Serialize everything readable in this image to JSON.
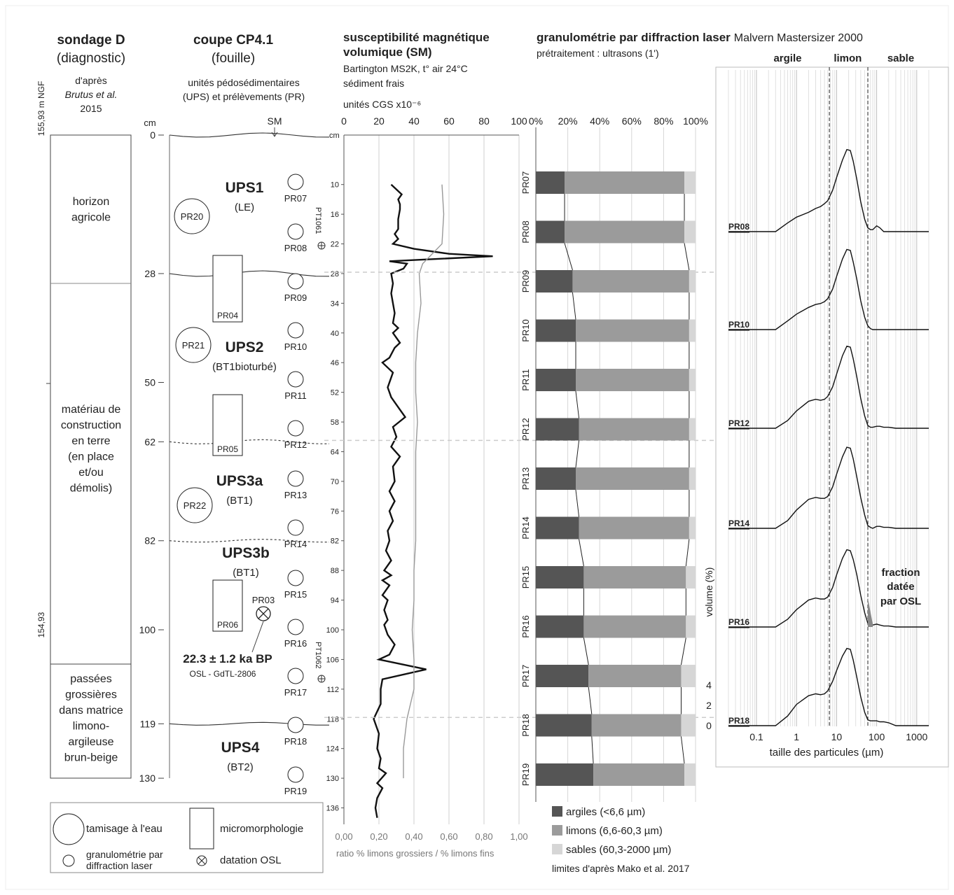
{
  "col_d": {
    "title": "sondage D",
    "subtitle": "(diagnostic)",
    "ref": [
      "d'après",
      "Brutus et al.",
      "2015"
    ],
    "alt_top": "155,93 m NGF",
    "alt_bottom": "154,93",
    "horizons": [
      {
        "lines": [
          "horizon",
          "agricole"
        ]
      },
      {
        "lines": [
          "matériau de",
          "construction",
          "en terre",
          "(en place",
          "et/ou",
          "démolis)"
        ]
      },
      {
        "lines": [
          "passées",
          "grossières",
          "dans matrice",
          "limono-",
          "argileuse",
          "brun-beige"
        ]
      }
    ]
  },
  "col_cp": {
    "title": "coupe CP4.1",
    "subtitle": "(fouille)",
    "note": [
      "unités pédosédimentaires",
      "(UPS) et prélèvements (PR)"
    ],
    "depth_unit": "cm",
    "depth_ticks": [
      "0",
      "28",
      "50",
      "62",
      "82",
      "100",
      "119",
      "130"
    ],
    "sm_label": "SM",
    "units": [
      {
        "name": "UPS1",
        "sub": "(LE)"
      },
      {
        "name": "UPS2",
        "sub": "(BT1bioturbé)"
      },
      {
        "name": "UPS3a",
        "sub": "(BT1)"
      },
      {
        "name": "UPS3b",
        "sub": "(BT1)"
      },
      {
        "name": "UPS4",
        "sub": "(BT2)"
      }
    ],
    "big_samples": [
      "PR20",
      "PR21",
      "PR22"
    ],
    "micro_samples": [
      "PR04",
      "PR05",
      "PR06"
    ],
    "samples": [
      "PR07",
      "PR08",
      "PR09",
      "PR10",
      "PR11",
      "PR12",
      "PR13",
      "PR14",
      "PR15",
      "PR16",
      "PR17",
      "PR18",
      "PR19"
    ],
    "osl_sample": "PR03",
    "osl_age": "22.3 ± 1.2 ka BP",
    "osl_code": "OSL - GdTL-2806",
    "pt_labels": [
      "PT1061",
      "PT1062"
    ]
  },
  "legend_left": {
    "wet_sieve": "tamisage à l'eau",
    "micro": "micromorphologie",
    "laser": [
      "granulométrie par",
      "diffraction laser"
    ],
    "osl": "datation OSL"
  },
  "chart_data": [
    {
      "type": "line",
      "title": [
        "susceptibilité magnétique",
        "volumique (SM)"
      ],
      "subtitle": [
        "Bartington MS2K, t° air 24°C",
        "sédiment frais"
      ],
      "xlabel_top": "unités CGS x10⁻⁶",
      "xlabel_bottom": "ratio % limons grossiers / % limons fins",
      "depth_unit": "cm",
      "top_ticks": [
        "0",
        "20",
        "40",
        "60",
        "80",
        "100"
      ],
      "bottom_ticks": [
        "0,00",
        "0,20",
        "0,40",
        "0,60",
        "0,80",
        "1,00"
      ],
      "depth_ticks": [
        "10",
        "16",
        "22",
        "28",
        "34",
        "40",
        "46",
        "52",
        "58",
        "64",
        "70",
        "76",
        "82",
        "88",
        "94",
        "100",
        "106",
        "112",
        "118",
        "124",
        "130",
        "136"
      ],
      "xlim_sm": [
        0,
        100
      ],
      "xlim_ratio": [
        0,
        1
      ],
      "ylim_depth_cm": [
        0,
        140
      ],
      "series": [
        {
          "role": "SM",
          "points": [
            [
              10,
              27
            ],
            [
              11,
              30
            ],
            [
              12,
              33
            ],
            [
              13,
              31
            ],
            [
              14,
              32
            ],
            [
              15,
              32
            ],
            [
              17,
              31
            ],
            [
              19,
              31
            ],
            [
              20,
              29
            ],
            [
              21,
              31
            ],
            [
              22,
              28
            ],
            [
              23,
              40
            ],
            [
              24,
              60
            ],
            [
              24.5,
              85
            ],
            [
              25.5,
              26
            ],
            [
              26,
              36
            ],
            [
              27,
              34
            ],
            [
              28,
              27
            ],
            [
              30,
              28
            ],
            [
              32,
              27
            ],
            [
              34,
              28
            ],
            [
              36,
              29
            ],
            [
              38,
              28
            ],
            [
              39,
              31
            ],
            [
              40,
              28
            ],
            [
              42,
              32
            ],
            [
              43,
              29
            ],
            [
              45,
              26
            ],
            [
              46,
              22
            ],
            [
              48,
              28
            ],
            [
              51,
              25
            ],
            [
              53,
              27
            ],
            [
              55,
              31
            ],
            [
              57,
              35
            ],
            [
              59,
              28
            ],
            [
              61,
              30
            ],
            [
              63,
              27
            ],
            [
              65,
              32
            ],
            [
              67,
              28
            ],
            [
              70,
              29
            ],
            [
              72,
              26
            ],
            [
              74,
              29
            ],
            [
              76,
              26
            ],
            [
              78,
              28
            ],
            [
              80,
              25
            ],
            [
              82,
              26
            ],
            [
              84,
              24
            ],
            [
              86,
              27
            ],
            [
              88,
              23
            ],
            [
              89,
              27
            ],
            [
              90,
              22
            ],
            [
              91,
              26
            ],
            [
              93,
              22
            ],
            [
              94,
              25
            ],
            [
              96,
              23
            ],
            [
              98,
              25
            ],
            [
              99,
              23
            ],
            [
              101,
              25
            ],
            [
              103,
              29
            ],
            [
              105,
              26
            ],
            [
              106,
              20
            ],
            [
              108,
              47
            ],
            [
              110,
              22
            ],
            [
              112,
              21
            ],
            [
              115,
              21
            ],
            [
              118,
              17
            ],
            [
              121,
              20
            ],
            [
              124,
              19
            ],
            [
              126,
              21
            ],
            [
              128,
              20
            ],
            [
              129,
              24
            ],
            [
              131,
              19
            ],
            [
              132,
              22
            ],
            [
              134,
              19
            ],
            [
              136,
              18
            ],
            [
              138,
              19
            ]
          ]
        },
        {
          "role": "ratio",
          "points": [
            [
              10,
              0.56
            ],
            [
              16,
              0.57
            ],
            [
              22,
              0.56
            ],
            [
              26,
              0.45
            ],
            [
              28,
              0.43
            ],
            [
              34,
              0.44
            ],
            [
              40,
              0.42
            ],
            [
              46,
              0.41
            ],
            [
              52,
              0.41
            ],
            [
              58,
              0.42
            ],
            [
              64,
              0.41
            ],
            [
              70,
              0.41
            ],
            [
              76,
              0.41
            ],
            [
              82,
              0.41
            ],
            [
              88,
              0.4
            ],
            [
              94,
              0.4
            ],
            [
              100,
              0.39
            ],
            [
              106,
              0.4
            ],
            [
              112,
              0.4
            ],
            [
              118,
              0.36
            ],
            [
              124,
              0.34
            ],
            [
              130,
              0.34
            ]
          ]
        }
      ]
    },
    {
      "type": "bar",
      "title": "granulométrie par diffraction laser",
      "title_extra": "Malvern Mastersizer 2000",
      "subtitle": "prétraitement : ultrasons (1')",
      "x_ticks": [
        "0%",
        "20%",
        "40%",
        "60%",
        "80%",
        "100%"
      ],
      "categories": [
        "PR07",
        "PR08",
        "PR09",
        "PR10",
        "PR11",
        "PR12",
        "PR13",
        "PR14",
        "PR15",
        "PR16",
        "PR17",
        "PR18",
        "PR19"
      ],
      "series": [
        {
          "name": "argiles (<6,6 µm)",
          "values": [
            18,
            18,
            23,
            25,
            25,
            27,
            25,
            27,
            30,
            30,
            33,
            35,
            36
          ],
          "color": "#555555"
        },
        {
          "name": "limons (6,6-60,3 µm)",
          "values": [
            75,
            75,
            73,
            71,
            71,
            69,
            71,
            69,
            64,
            64,
            58,
            56,
            57
          ],
          "color": "#9b9b9b"
        },
        {
          "name": "sables (60,3-2000 µm)",
          "values": [
            7,
            7,
            4,
            4,
            4,
            4,
            4,
            4,
            6,
            6,
            9,
            9,
            7
          ],
          "color": "#d6d6d6"
        }
      ],
      "note": "limites d'après Mako et al. 2017",
      "xlim": [
        0,
        100
      ]
    },
    {
      "type": "line",
      "log_x": true,
      "xlabel": "taille des particules (µm)",
      "ylabel": "volume (%)",
      "y_ticks": [
        "0",
        "2",
        "4"
      ],
      "x_ticks": [
        "0.1",
        "1",
        "10",
        "100",
        "1000"
      ],
      "xlim": [
        0.02,
        2000
      ],
      "class_labels": [
        "argile",
        "limon",
        "sable"
      ],
      "class_limits_um": [
        6.6,
        60.3
      ],
      "annotation": [
        "fraction",
        "datée",
        "par OSL"
      ],
      "series": [
        {
          "name": "PR08",
          "x": [
            0.3,
            0.6,
            1,
            2,
            3,
            4,
            5,
            6,
            8,
            10,
            14,
            18,
            22,
            26,
            32,
            40,
            50,
            60,
            70,
            80,
            100,
            120,
            150,
            200,
            300
          ],
          "y": [
            0,
            0.9,
            1.5,
            2.0,
            2.4,
            2.6,
            2.9,
            3.2,
            4.3,
            5.6,
            7.4,
            8.5,
            8.4,
            7.3,
            5.4,
            3.1,
            1.3,
            0.4,
            0.2,
            0.2,
            0.6,
            0.4,
            0,
            0,
            0
          ]
        },
        {
          "name": "PR10",
          "x": [
            0.3,
            0.6,
            1,
            2,
            3,
            4,
            5,
            6,
            8,
            10,
            14,
            18,
            22,
            26,
            32,
            40,
            50,
            60,
            70,
            80,
            100,
            120,
            150,
            200,
            300
          ],
          "y": [
            0,
            0.9,
            1.6,
            2.3,
            2.6,
            2.7,
            2.9,
            3.2,
            4.2,
            5.5,
            7.3,
            8.3,
            8.2,
            7.0,
            5.2,
            3.0,
            1.3,
            0.4,
            0.1,
            0,
            0,
            0,
            0,
            0,
            0
          ]
        },
        {
          "name": "PR12",
          "x": [
            0.3,
            0.6,
            1,
            2,
            3,
            4,
            5,
            6,
            8,
            10,
            14,
            18,
            22,
            26,
            32,
            40,
            50,
            60,
            70,
            80,
            100,
            120,
            150,
            200,
            300
          ],
          "y": [
            0,
            0.8,
            1.8,
            2.8,
            3.0,
            2.9,
            3.0,
            3.3,
            4.3,
            5.6,
            7.5,
            8.5,
            8.4,
            7.2,
            5.3,
            3.1,
            1.3,
            0.3,
            0.1,
            0.1,
            0.2,
            0.2,
            0.1,
            0.1,
            0
          ]
        },
        {
          "name": "PR14",
          "x": [
            0.3,
            0.6,
            1,
            2,
            3,
            4,
            5,
            6,
            8,
            10,
            14,
            18,
            22,
            26,
            32,
            40,
            50,
            60,
            70,
            80,
            100,
            120,
            150,
            200,
            300
          ],
          "y": [
            0,
            0.8,
            1.9,
            3.0,
            3.2,
            3.1,
            3.1,
            3.3,
            4.3,
            5.6,
            7.4,
            8.4,
            8.3,
            7.2,
            5.3,
            3.2,
            1.4,
            0.3,
            0.1,
            0,
            0.2,
            0.2,
            0.1,
            0.1,
            0
          ]
        },
        {
          "name": "PR16",
          "x": [
            0.3,
            0.6,
            1,
            2,
            3,
            4,
            5,
            6,
            8,
            10,
            14,
            18,
            22,
            26,
            32,
            40,
            50,
            60,
            70,
            80,
            100,
            120,
            150,
            200,
            300
          ],
          "y": [
            0,
            0.8,
            1.8,
            2.8,
            3.0,
            2.9,
            2.9,
            3.1,
            4.1,
            5.4,
            7.1,
            8.0,
            7.9,
            7.0,
            5.4,
            3.3,
            1.5,
            0.4,
            0.2,
            0.2,
            0.3,
            0.2,
            0.1,
            0.1,
            0
          ]
        },
        {
          "name": "PR18",
          "x": [
            0.3,
            0.6,
            1,
            2,
            3,
            4,
            5,
            6,
            8,
            10,
            14,
            18,
            22,
            26,
            32,
            40,
            50,
            60,
            70,
            80,
            100,
            120,
            150,
            200,
            300
          ],
          "y": [
            0,
            1.0,
            2.2,
            3.1,
            3.3,
            3.2,
            3.3,
            3.6,
            4.6,
            5.7,
            7.2,
            8.0,
            7.9,
            6.8,
            5.0,
            3.0,
            1.4,
            0.6,
            0.5,
            0.5,
            0.5,
            0.4,
            0.4,
            0.3,
            0
          ]
        }
      ]
    }
  ]
}
